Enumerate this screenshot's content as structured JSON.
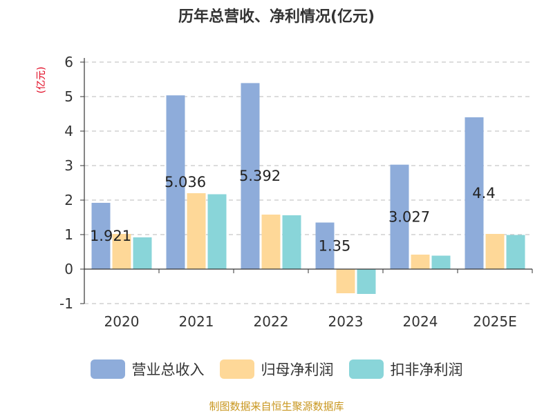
{
  "chart_data": {
    "type": "bar",
    "title": "历年总营收、净利情况(亿元)",
    "ylabel": "(亿元)",
    "xlabel": "",
    "ylim": [
      -1,
      6
    ],
    "yticks": [
      -1,
      0,
      1,
      2,
      3,
      4,
      5,
      6
    ],
    "grid": true,
    "legend_position": "bottom",
    "categories": [
      "2020",
      "2021",
      "2022",
      "2023",
      "2024",
      "2025E"
    ],
    "series": [
      {
        "name": "营业总收入",
        "color": "#8eacda",
        "values": [
          1.921,
          5.036,
          5.392,
          1.35,
          3.027,
          4.4
        ],
        "data_labels": [
          "1.921",
          "5.036",
          "5.392",
          "1.35",
          "3.027",
          "4.4"
        ]
      },
      {
        "name": "归母净利润",
        "color": "#fed898",
        "values": [
          1.02,
          2.2,
          1.58,
          -0.7,
          0.42,
          1.02
        ]
      },
      {
        "name": "扣非净利润",
        "color": "#89d5d9",
        "values": [
          0.92,
          2.17,
          1.56,
          -0.72,
          0.39,
          0.99
        ]
      }
    ]
  },
  "source_text": "制图数据来自恒生聚源数据库"
}
